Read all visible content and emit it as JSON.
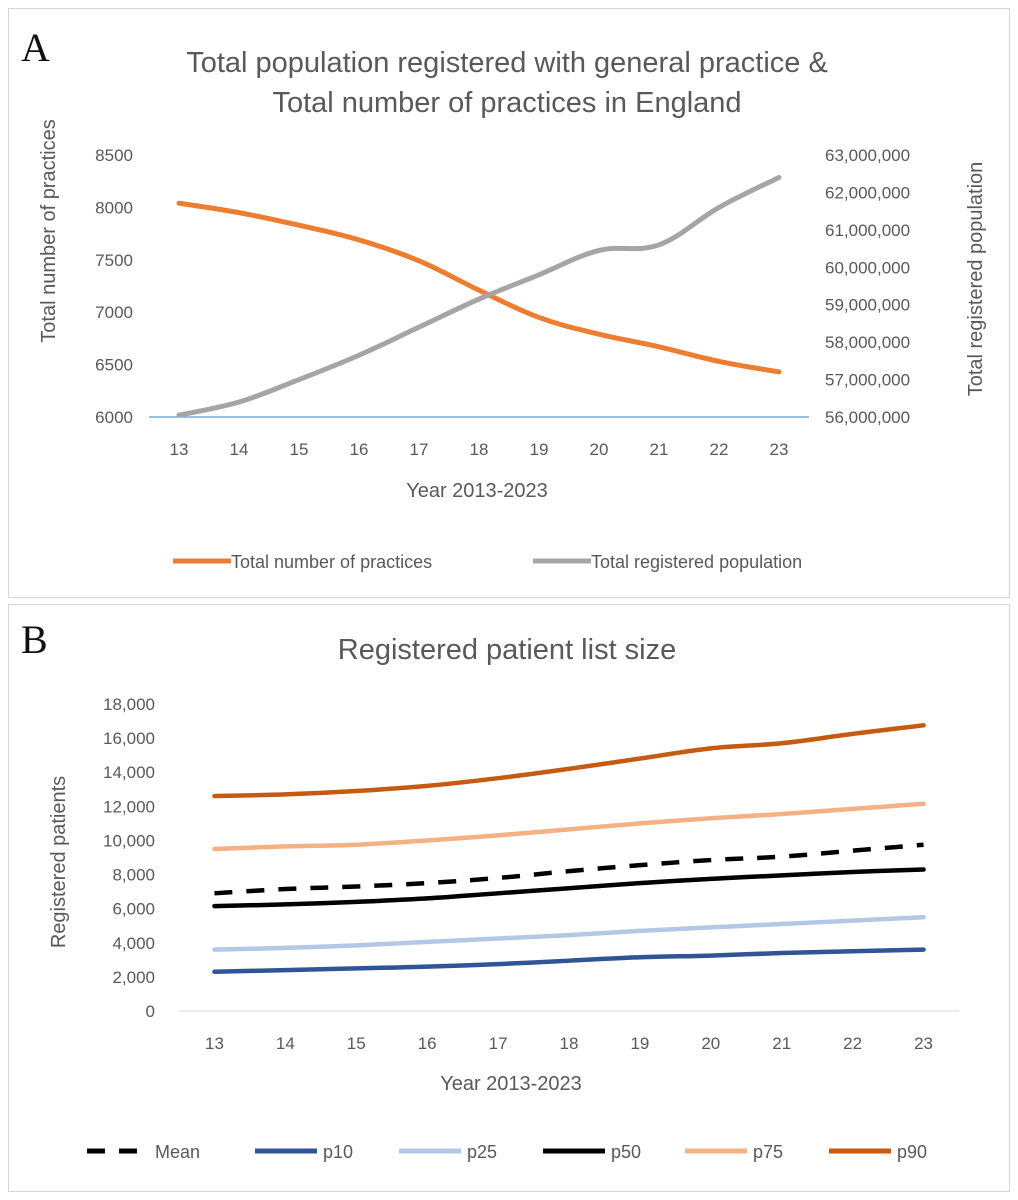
{
  "chart_data": [
    {
      "type": "line",
      "panel_label": "A",
      "title_lines": [
        "Total population registered with general practice &",
        "Total number of practices in England"
      ],
      "xlabel": "Year 2013-2023",
      "ylabel": "Total number of practices",
      "y2label": "Total registered population",
      "categories": [
        "13",
        "14",
        "15",
        "16",
        "17",
        "18",
        "19",
        "20",
        "21",
        "22",
        "23"
      ],
      "ylim": [
        6000,
        8500
      ],
      "yticks": [
        "6000",
        "6500",
        "7000",
        "7500",
        "8000",
        "8500"
      ],
      "y2lim": [
        56000000,
        63000000
      ],
      "y2ticks": [
        "56,000,000",
        "57,000,000",
        "58,000,000",
        "59,000,000",
        "60,000,000",
        "61,000,000",
        "62,000,000",
        "63,000,000"
      ],
      "legend_position": "bottom",
      "series": [
        {
          "name": "Total number of practices",
          "axis": "left",
          "color": "#ED7D31",
          "values": [
            8040,
            7950,
            7830,
            7690,
            7490,
            7210,
            6950,
            6790,
            6670,
            6530,
            6430
          ]
        },
        {
          "name": "Total registered population",
          "axis": "right",
          "color": "#A5A5A5",
          "values": [
            56050000,
            56400000,
            57000000,
            57650000,
            58400000,
            59150000,
            59800000,
            60450000,
            60600000,
            61600000,
            62400000
          ]
        }
      ]
    },
    {
      "type": "line",
      "panel_label": "B",
      "title_lines": [
        "Registered patient list size"
      ],
      "xlabel": "Year 2013-2023",
      "ylabel": "Registered patients",
      "categories": [
        "13",
        "14",
        "15",
        "16",
        "17",
        "18",
        "19",
        "20",
        "21",
        "22",
        "23"
      ],
      "ylim": [
        0,
        18000
      ],
      "yticks": [
        "0",
        "2,000",
        "4,000",
        "6,000",
        "8,000",
        "10,000",
        "12,000",
        "14,000",
        "16,000",
        "18,000"
      ],
      "legend_position": "bottom",
      "series": [
        {
          "name": "Mean",
          "color": "#000000",
          "dashed": true,
          "values": [
            6900,
            7150,
            7300,
            7500,
            7800,
            8200,
            8550,
            8850,
            9050,
            9400,
            9750
          ]
        },
        {
          "name": "p10",
          "color": "#2F5597",
          "values": [
            2300,
            2400,
            2500,
            2600,
            2750,
            2950,
            3150,
            3250,
            3400,
            3500,
            3600
          ]
        },
        {
          "name": "p25",
          "color": "#B4C7E7",
          "values": [
            3600,
            3700,
            3850,
            4050,
            4250,
            4450,
            4700,
            4900,
            5100,
            5300,
            5500
          ]
        },
        {
          "name": "p50",
          "color": "#000000",
          "values": [
            6150,
            6250,
            6400,
            6600,
            6900,
            7200,
            7500,
            7750,
            7950,
            8150,
            8300
          ]
        },
        {
          "name": "p75",
          "color": "#F4B183",
          "values": [
            9500,
            9650,
            9750,
            10000,
            10300,
            10650,
            11000,
            11300,
            11550,
            11850,
            12150
          ]
        },
        {
          "name": "p90",
          "color": "#C55A11",
          "values": [
            12600,
            12700,
            12900,
            13200,
            13650,
            14200,
            14800,
            15400,
            15700,
            16250,
            16750
          ]
        }
      ]
    }
  ]
}
